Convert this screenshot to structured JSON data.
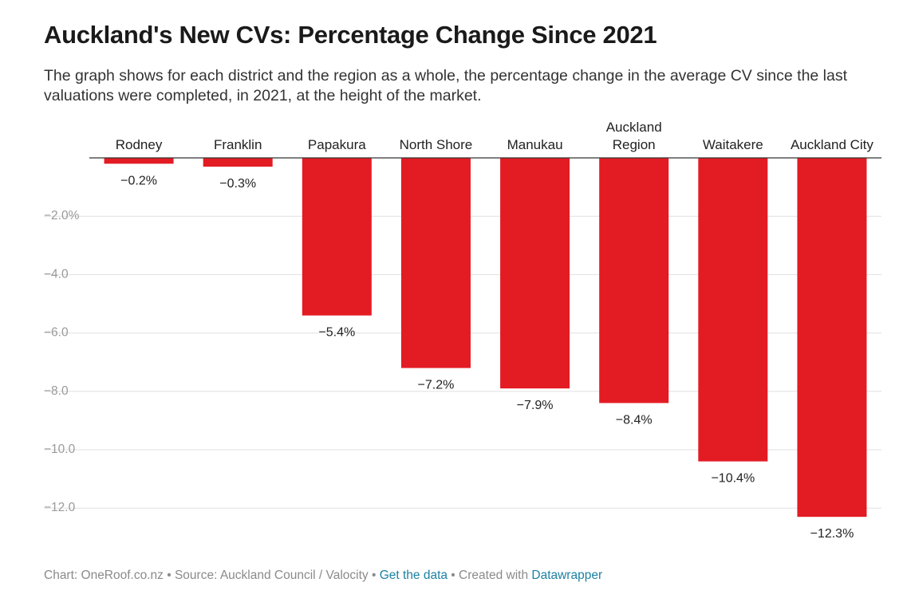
{
  "title": "Auckland's New CVs: Percentage Change Since 2021",
  "subtitle": "The graph shows for each district and the region as a whole, the percentage change in the average CV since the last valuations were completed, in 2021, at the height of the market.",
  "footer": {
    "chart_credit": "Chart: OneRoof.co.nz",
    "separator": " • ",
    "source": "Source: Auckland Council / Valocity",
    "get_data_link": "Get the data",
    "created_with": "Created with",
    "datawrapper_link": "Datawrapper"
  },
  "colors": {
    "bar": "#e31b23",
    "grid": "#e0e0e0",
    "baseline": "#333333",
    "tick_text": "#9a9a9a",
    "link": "#1d81a2"
  },
  "chart_data": {
    "type": "bar",
    "categories": [
      "Rodney",
      "Franklin",
      "Papakura",
      "North Shore",
      "Manukau",
      "Auckland Region",
      "Waitakere",
      "Auckland City"
    ],
    "category_lines": [
      [
        "Rodney"
      ],
      [
        "Franklin"
      ],
      [
        "Papakura"
      ],
      [
        "North Shore"
      ],
      [
        "Manukau"
      ],
      [
        "Auckland",
        "Region"
      ],
      [
        "Waitakere"
      ],
      [
        "Auckland City"
      ]
    ],
    "values": [
      -0.2,
      -0.3,
      -5.4,
      -7.2,
      -7.9,
      -8.4,
      -10.4,
      -12.3
    ],
    "value_labels": [
      "−0.2%",
      "−0.3%",
      "−5.4%",
      "−7.2%",
      "−7.9%",
      "−8.4%",
      "−10.4%",
      "−12.3%"
    ],
    "y_ticks": [
      -2,
      -4,
      -6,
      -8,
      -10,
      -12
    ],
    "y_tick_labels": [
      "−2.0%",
      "−4.0",
      "−6.0",
      "−8.0",
      "−10.0",
      "−12.0"
    ],
    "ylim": [
      -12.3,
      0
    ],
    "grid": true,
    "legend": "none"
  }
}
